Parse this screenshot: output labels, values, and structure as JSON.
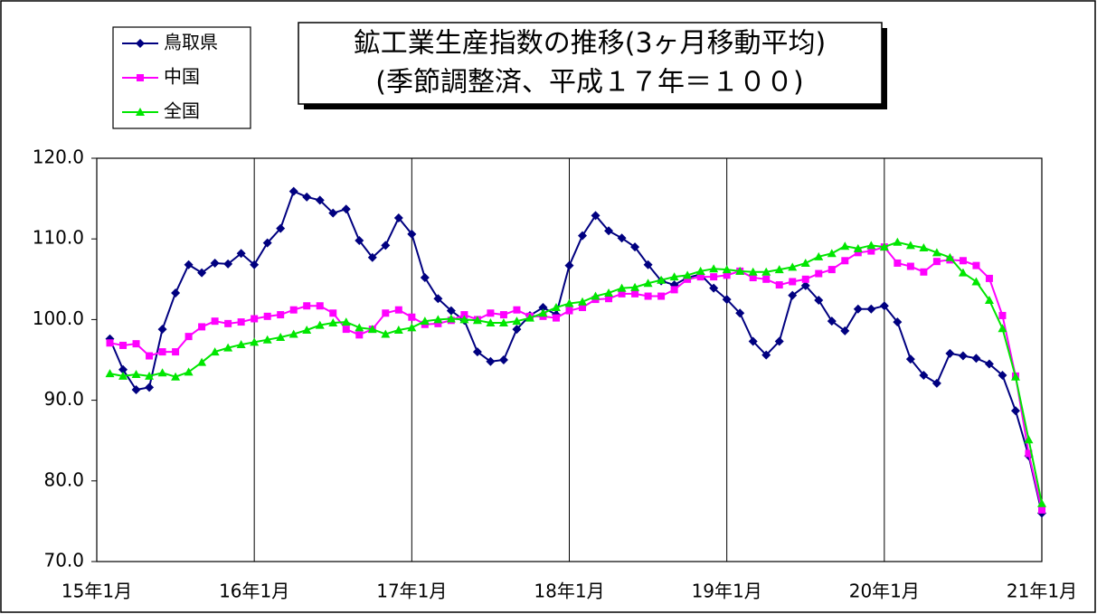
{
  "chart_data": {
    "type": "line",
    "title": "鉱工業生産指数の推移(3ヶ月移動平均)",
    "subtitle": "(季節調整済、平成１７年＝１００)",
    "categories": [
      "15年1月",
      null,
      null,
      null,
      null,
      null,
      null,
      null,
      null,
      null,
      null,
      null,
      "16年1月",
      null,
      null,
      null,
      null,
      null,
      null,
      null,
      null,
      null,
      null,
      null,
      "17年1月",
      null,
      null,
      null,
      null,
      null,
      null,
      null,
      null,
      null,
      null,
      null,
      "18年1月",
      null,
      null,
      null,
      null,
      null,
      null,
      null,
      null,
      null,
      null,
      null,
      "19年1月",
      null,
      null,
      null,
      null,
      null,
      null,
      null,
      null,
      null,
      null,
      null,
      "20年1月",
      null,
      null,
      null,
      null,
      null,
      null,
      null,
      null,
      null,
      null,
      null,
      "21年1月"
    ],
    "series": [
      {
        "name": "鳥取県",
        "color": "#000080",
        "marker": "diamond",
        "values": [
          null,
          97.6,
          93.8,
          91.3,
          91.6,
          98.8,
          103.3,
          106.8,
          105.8,
          107.0,
          106.9,
          108.2,
          106.8,
          109.5,
          111.3,
          115.9,
          115.2,
          114.8,
          113.2,
          113.7,
          109.8,
          107.7,
          109.2,
          112.6,
          110.6,
          105.2,
          102.6,
          101.1,
          99.9,
          96.0,
          94.8,
          95.0,
          98.8,
          100.5,
          101.5,
          100.6,
          106.7,
          110.4,
          112.9,
          111.0,
          110.1,
          109.0,
          106.8,
          104.8,
          104.3,
          105.2,
          105.6,
          103.9,
          102.5,
          100.8,
          97.3,
          95.6,
          97.3,
          103.0,
          104.2,
          102.4,
          99.8,
          98.6,
          101.3,
          101.3,
          101.7,
          99.7,
          95.1,
          93.1,
          92.1,
          95.8,
          95.5,
          95.2,
          94.5,
          93.1,
          88.7,
          83.1,
          76.0
        ]
      },
      {
        "name": "中国",
        "color": "#ff00ff",
        "marker": "square",
        "values": [
          null,
          97.1,
          96.8,
          97.0,
          95.5,
          96.0,
          96.0,
          97.9,
          99.1,
          99.8,
          99.5,
          99.7,
          100.1,
          100.4,
          100.6,
          101.2,
          101.7,
          101.7,
          100.8,
          98.8,
          98.1,
          98.8,
          100.8,
          101.2,
          100.3,
          99.4,
          99.5,
          99.9,
          100.6,
          100.0,
          100.8,
          100.6,
          101.2,
          100.4,
          100.4,
          100.2,
          101.1,
          101.5,
          102.5,
          102.6,
          103.2,
          103.2,
          102.9,
          102.9,
          103.7,
          105.0,
          105.3,
          105.3,
          105.5,
          106.0,
          105.2,
          105.0,
          104.3,
          104.7,
          105.0,
          105.7,
          106.2,
          107.3,
          108.3,
          108.5,
          109.0,
          107.0,
          106.6,
          105.9,
          107.2,
          107.4,
          107.3,
          106.7,
          105.1,
          100.5,
          93.0,
          83.4,
          76.4
        ]
      },
      {
        "name": "全国",
        "color": "#00e600",
        "marker": "triangle",
        "values": [
          null,
          93.3,
          93.0,
          93.2,
          93.0,
          93.4,
          92.9,
          93.5,
          94.7,
          96.0,
          96.5,
          96.9,
          97.2,
          97.5,
          97.8,
          98.2,
          98.7,
          99.3,
          99.6,
          99.7,
          99.0,
          98.8,
          98.2,
          98.7,
          99.0,
          99.8,
          100.0,
          100.1,
          100.0,
          99.9,
          99.6,
          99.6,
          99.8,
          100.2,
          100.8,
          101.5,
          102.0,
          102.2,
          102.9,
          103.3,
          103.9,
          104.0,
          104.5,
          104.9,
          105.3,
          105.5,
          106.0,
          106.3,
          106.2,
          106.0,
          105.9,
          105.9,
          106.2,
          106.5,
          107.0,
          107.8,
          108.2,
          109.1,
          108.8,
          109.2,
          109.0,
          109.6,
          109.2,
          108.9,
          108.3,
          107.7,
          105.8,
          104.7,
          102.4,
          98.9,
          92.9,
          85.1,
          77.2
        ]
      }
    ],
    "ylim": [
      70,
      120
    ],
    "yticks": [
      {
        "value": 70,
        "label": "70.0"
      },
      {
        "value": 80,
        "label": "80.0"
      },
      {
        "value": 90,
        "label": "90.0"
      },
      {
        "value": 100,
        "label": "100.0"
      },
      {
        "value": 110,
        "label": "110.0"
      },
      {
        "value": 120,
        "label": "120.0"
      }
    ],
    "grid": true
  }
}
